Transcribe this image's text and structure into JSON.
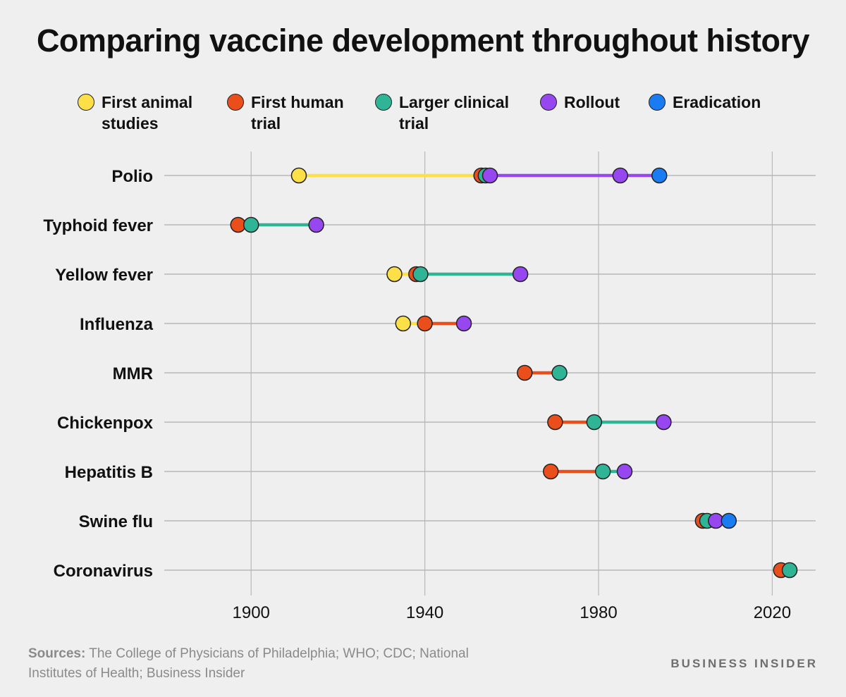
{
  "title": "Comparing vaccine development throughout history",
  "colors": {
    "first_animal_studies": "#fde047",
    "first_human_trial": "#ea4e1b",
    "larger_clinical_trial": "#2fb596",
    "rollout": "#9747f0",
    "eradication": "#1a7cf2"
  },
  "legend": [
    {
      "key": "first_animal_studies",
      "label": "First animal studies"
    },
    {
      "key": "first_human_trial",
      "label": "First human trial"
    },
    {
      "key": "larger_clinical_trial",
      "label": "Larger clinical trial"
    },
    {
      "key": "rollout",
      "label": "Rollout"
    },
    {
      "key": "eradication",
      "label": "Eradication"
    }
  ],
  "sources_label": "Sources:",
  "sources_text": "The College of Physicians of Philadelphia; WHO; CDC; National Institutes of Health; Business Insider",
  "brand": "BUSINESS INSIDER",
  "chart_data": {
    "type": "dot-range",
    "title": "Comparing vaccine development throughout history",
    "xlabel": "",
    "ylabel": "",
    "xlim": [
      1880,
      2030
    ],
    "xticks": [
      1900,
      1940,
      1980,
      2020
    ],
    "grid": true,
    "legend_position": "top",
    "rows": [
      {
        "name": "Polio",
        "points": [
          {
            "stage": "first_animal_studies",
            "year": 1911
          },
          {
            "stage": "first_human_trial",
            "year": 1953
          },
          {
            "stage": "larger_clinical_trial",
            "year": 1954
          },
          {
            "stage": "rollout",
            "year": 1955
          },
          {
            "stage": "rollout",
            "year": 1985
          },
          {
            "stage": "eradication",
            "year": 1994
          }
        ]
      },
      {
        "name": "Typhoid fever",
        "points": [
          {
            "stage": "first_human_trial",
            "year": 1897
          },
          {
            "stage": "larger_clinical_trial",
            "year": 1900
          },
          {
            "stage": "rollout",
            "year": 1915
          }
        ]
      },
      {
        "name": "Yellow fever",
        "points": [
          {
            "stage": "first_animal_studies",
            "year": 1933
          },
          {
            "stage": "first_human_trial",
            "year": 1938
          },
          {
            "stage": "larger_clinical_trial",
            "year": 1939
          },
          {
            "stage": "rollout",
            "year": 1962
          }
        ]
      },
      {
        "name": "Influenza",
        "points": [
          {
            "stage": "first_animal_studies",
            "year": 1935
          },
          {
            "stage": "first_human_trial",
            "year": 1940
          },
          {
            "stage": "rollout",
            "year": 1949
          }
        ]
      },
      {
        "name": "MMR",
        "points": [
          {
            "stage": "first_human_trial",
            "year": 1963
          },
          {
            "stage": "larger_clinical_trial",
            "year": 1971
          }
        ]
      },
      {
        "name": "Chickenpox",
        "points": [
          {
            "stage": "first_human_trial",
            "year": 1970
          },
          {
            "stage": "larger_clinical_trial",
            "year": 1979
          },
          {
            "stage": "rollout",
            "year": 1995
          }
        ]
      },
      {
        "name": "Hepatitis B",
        "points": [
          {
            "stage": "first_human_trial",
            "year": 1969
          },
          {
            "stage": "larger_clinical_trial",
            "year": 1981
          },
          {
            "stage": "rollout",
            "year": 1986
          }
        ]
      },
      {
        "name": "Swine flu",
        "points": [
          {
            "stage": "first_human_trial",
            "year": 2004
          },
          {
            "stage": "larger_clinical_trial",
            "year": 2005
          },
          {
            "stage": "rollout",
            "year": 2007
          },
          {
            "stage": "eradication",
            "year": 2010
          }
        ]
      },
      {
        "name": "Coronavirus",
        "points": [
          {
            "stage": "first_human_trial",
            "year": 2022
          },
          {
            "stage": "larger_clinical_trial",
            "year": 2024
          }
        ]
      }
    ]
  }
}
